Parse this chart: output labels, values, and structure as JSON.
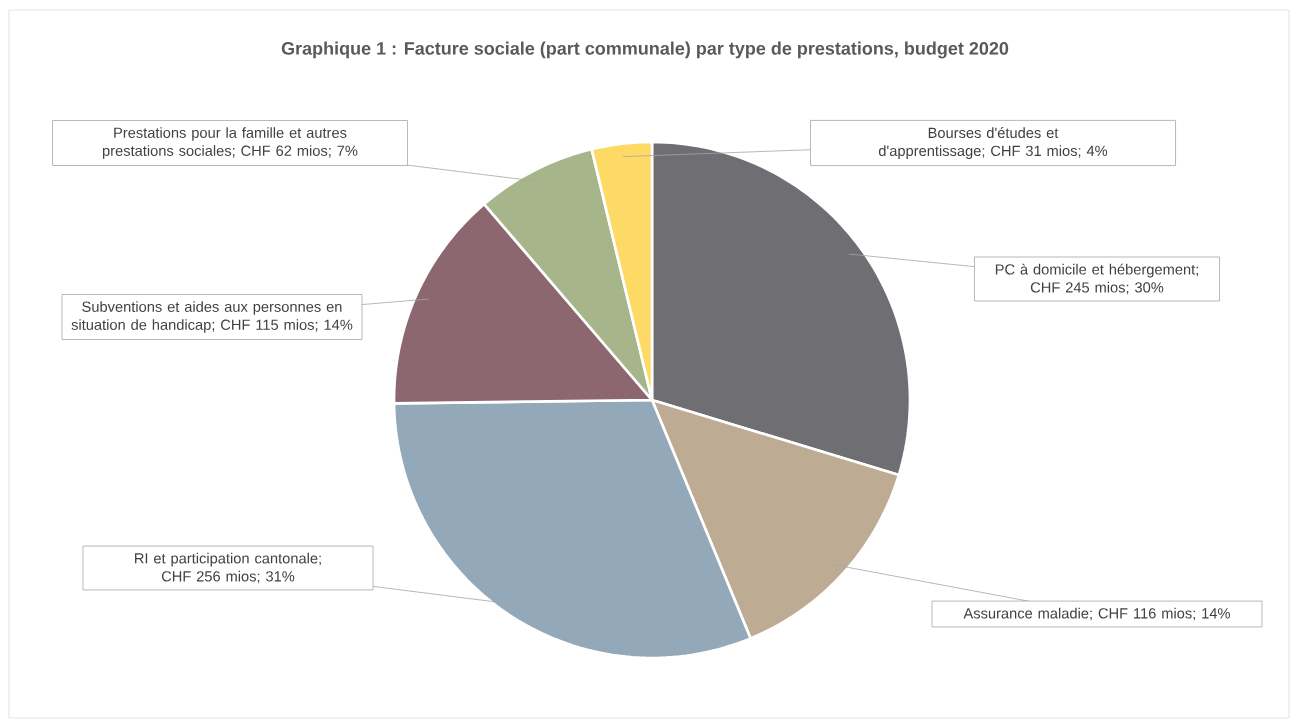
{
  "chart_data": {
    "type": "pie",
    "title": "Graphique 1 : Facture sociale (part communale)  par type de prestations,  budget 2020",
    "categories": [
      null,
      null,
      null,
      null,
      null,
      null
    ],
    "values": [
      245,
      116,
      256,
      115,
      62,
      31
    ],
    "colors": [
      "#6f6e73",
      "#bdab94",
      "#93a9b9",
      "#8d6770",
      "#a6b68a",
      "#fdd966"
    ],
    "value_labels": [
      "PC à domicile et hébergement; CHF 245 mios; 30%",
      "Assurance maladie; CHF 116 mios; 14%",
      "RI et participation cantonale; CHF 256 mios; 31%",
      "Subventions et aides aux personnes en situation de handicap; CHF 115 mios; 14%",
      "Prestations pour la famille et autres prestations sociales; CHF 62 mios; 7%",
      "Bourses d'études et d'apprentissage; CHF 31 mios; 4%"
    ]
  }
}
